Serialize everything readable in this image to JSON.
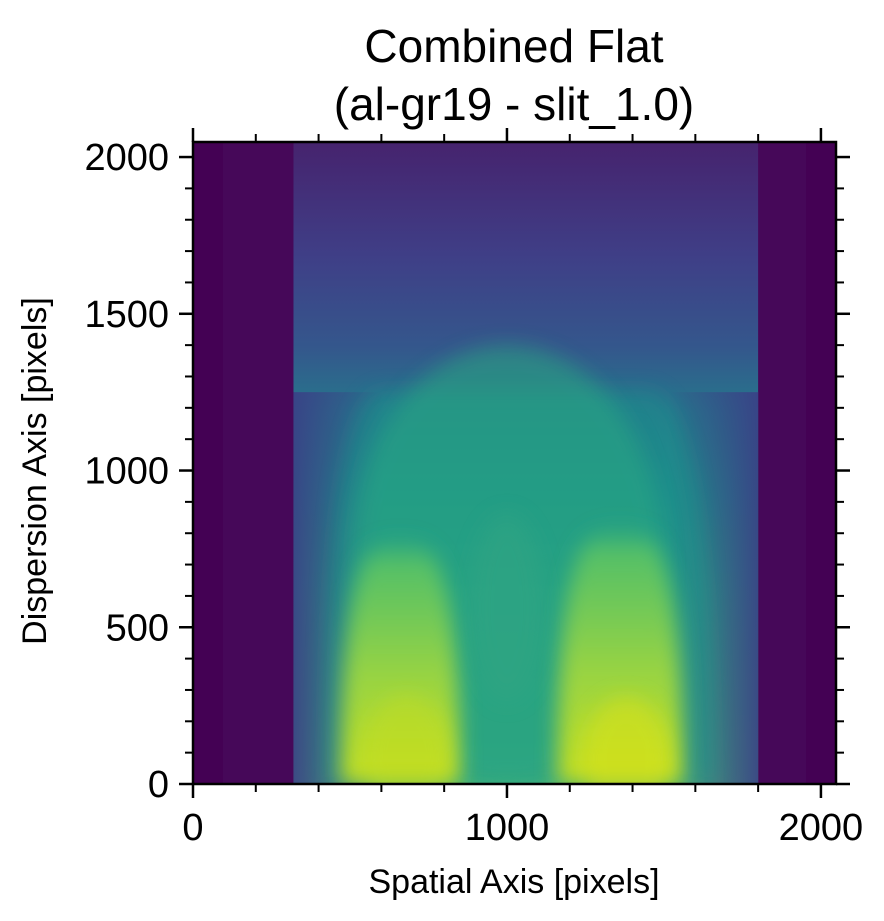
{
  "chart_data": {
    "type": "heatmap",
    "title": [
      "Combined Flat",
      "(al-gr19 - slit_1.0)"
    ],
    "xlabel": "Spatial Axis [pixels]",
    "ylabel": "Dispersion Axis [pixels]",
    "xlim": [
      0,
      2048
    ],
    "ylim": [
      0,
      2048
    ],
    "xticks": [
      0,
      1000,
      2000
    ],
    "yticks": [
      0,
      500,
      1000,
      1500,
      2000
    ],
    "xtick_labels": [
      "0",
      "1000",
      "2000"
    ],
    "ytick_labels": [
      "0",
      "500",
      "1000",
      "1500",
      "2000"
    ],
    "colormap": "viridis",
    "illuminated_region_x": [
      320,
      1800
    ],
    "grid": false,
    "colors": {
      "background_low": "#440154",
      "mid": "#31688e",
      "high": "#b5de2b",
      "peak": "#dce319"
    }
  }
}
